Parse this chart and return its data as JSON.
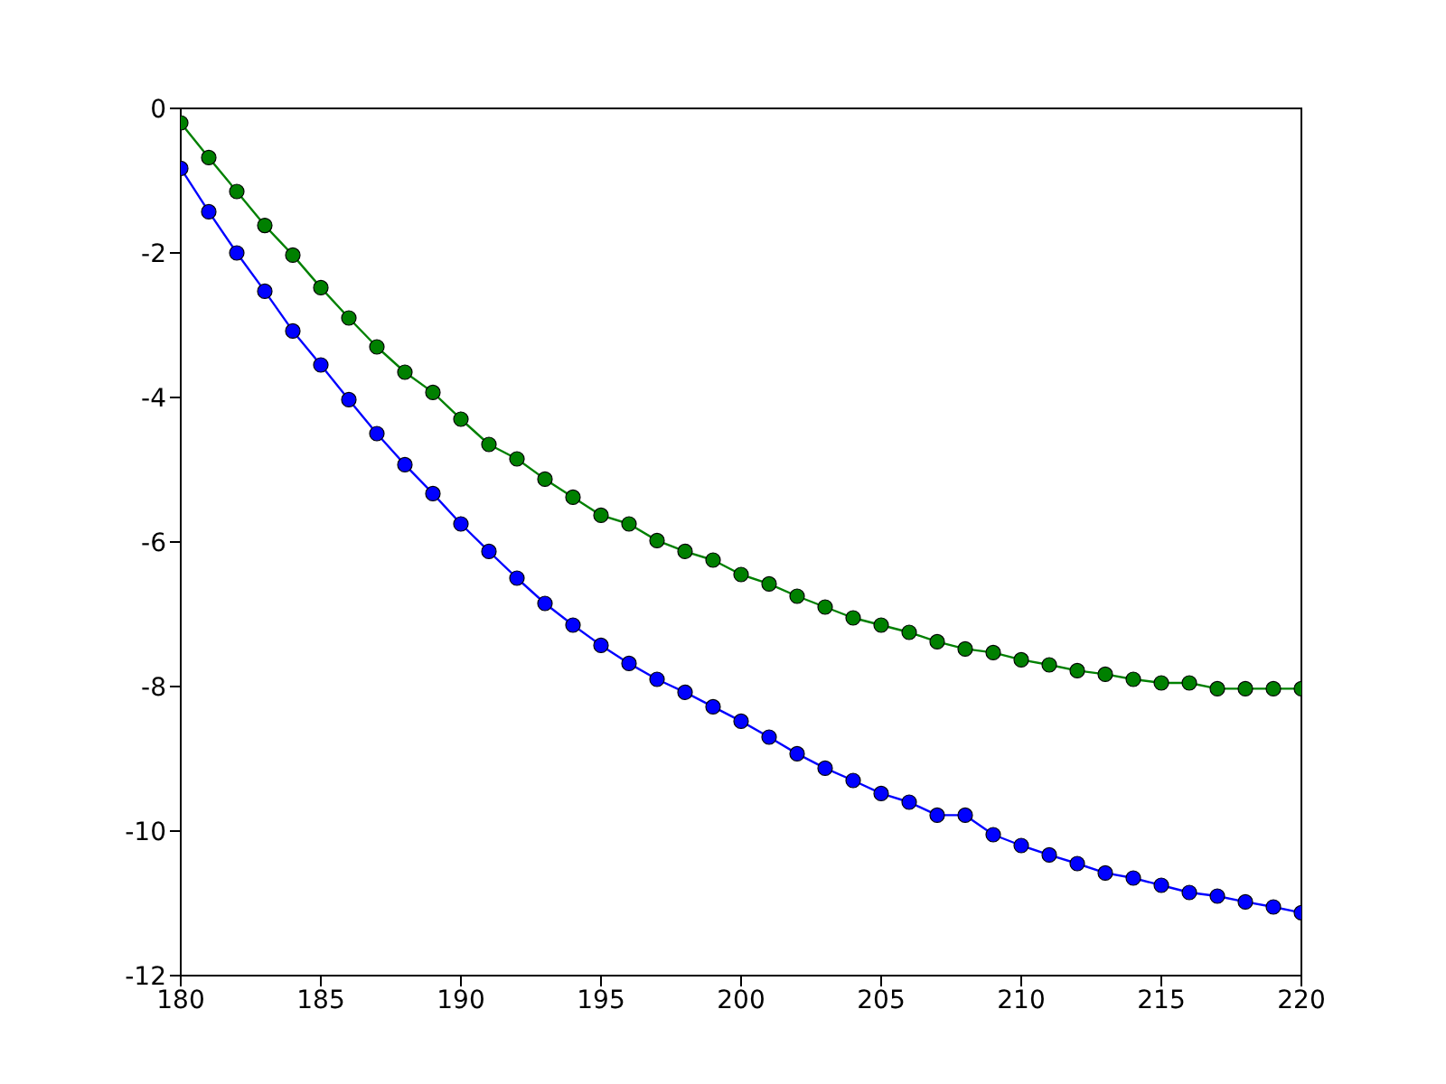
{
  "chart_data": {
    "type": "line",
    "x": [
      180,
      181,
      182,
      183,
      184,
      185,
      186,
      187,
      188,
      189,
      190,
      191,
      192,
      193,
      194,
      195,
      196,
      197,
      198,
      199,
      200,
      201,
      202,
      203,
      204,
      205,
      206,
      207,
      208,
      209,
      210,
      211,
      212,
      213,
      214,
      215,
      216,
      217,
      218,
      219,
      220
    ],
    "series": [
      {
        "color": "#0000ff",
        "values": [
          -0.83,
          -1.43,
          -2.0,
          -2.53,
          -3.08,
          -3.55,
          -4.03,
          -4.5,
          -4.93,
          -5.33,
          -5.75,
          -6.13,
          -6.5,
          -6.85,
          -7.15,
          -7.43,
          -7.68,
          -7.9,
          -8.08,
          -8.28,
          -8.48,
          -8.7,
          -8.93,
          -9.13,
          -9.3,
          -9.48,
          -9.6,
          -9.78,
          -9.78,
          -10.05,
          -10.2,
          -10.33,
          -10.45,
          -10.58,
          -10.65,
          -10.75,
          -10.85,
          -10.9,
          -10.98,
          -11.05,
          -11.13
        ]
      },
      {
        "color": "#008000",
        "values": [
          -0.2,
          -0.68,
          -1.15,
          -1.62,
          -2.03,
          -2.48,
          -2.9,
          -3.3,
          -3.65,
          -3.93,
          -4.3,
          -4.65,
          -4.85,
          -5.13,
          -5.38,
          -5.63,
          -5.75,
          -5.98,
          -6.13,
          -6.25,
          -6.45,
          -6.58,
          -6.75,
          -6.9,
          -7.05,
          -7.15,
          -7.25,
          -7.38,
          -7.48,
          -7.53,
          -7.63,
          -7.7,
          -7.78,
          -7.83,
          -7.9,
          -7.95,
          -7.95,
          -8.03,
          -8.03,
          -8.03,
          -8.03
        ]
      }
    ],
    "xlim": [
      180,
      220
    ],
    "xticks": [
      180,
      185,
      190,
      195,
      200,
      205,
      210,
      215,
      220
    ],
    "ylim": [
      -12,
      0
    ],
    "yticks": [
      -12,
      -10,
      -8,
      -6,
      -4,
      -2,
      0
    ],
    "marker": "circle",
    "line_style": "solid"
  }
}
